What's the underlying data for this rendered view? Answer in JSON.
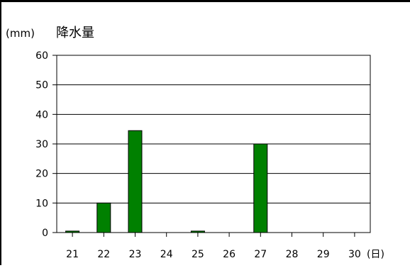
{
  "chart_data": {
    "type": "bar",
    "title": "降水量",
    "ylabel": "(mm)",
    "xlabel": "(日)",
    "categories": [
      "21",
      "22",
      "23",
      "24",
      "25",
      "26",
      "27",
      "28",
      "29",
      "30"
    ],
    "values": [
      0.5,
      10,
      34.5,
      0,
      0.5,
      0,
      30,
      0,
      0,
      0
    ],
    "ylim": [
      0,
      60
    ],
    "yticks": [
      "0",
      "10",
      "20",
      "30",
      "40",
      "50",
      "60"
    ],
    "grid": true,
    "bar_color": "#008000"
  }
}
